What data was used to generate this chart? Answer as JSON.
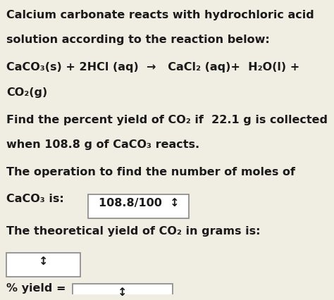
{
  "background_color": "#f0ede3",
  "text_color": "#1a1a1a",
  "font_size_main": 11.5,
  "title_line1": "Calcium carbonate reacts with hydrochloric acid",
  "title_line2": "solution according to the reaction below:",
  "equation_line1": "CaCO₃(s) + 2HCl (aq)  →   CaCl₂ (aq)+  H₂O(l) +",
  "equation_line2": "CO₂(g)",
  "problem_line1": "Find the percent yield of CO₂ if  22.1 g is collected",
  "problem_line2": "when 108.8 g of CaCO₃ reacts.",
  "op_line": "The operation to find the number of moles of",
  "caco3_label": "CaCO₃ is:",
  "box1_text": "108.8/100  ↕",
  "theoretical_line": "The theoretical yield of CO₂ in grams is:",
  "box2_text": "↕",
  "yield_label": "% yield =",
  "box3_text": "↕",
  "box_color": "#ffffff",
  "box_border": "#888888"
}
